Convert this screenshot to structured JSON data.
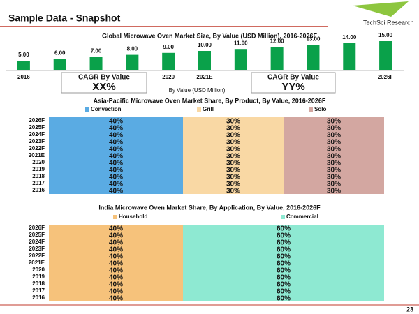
{
  "header": {
    "title": "Sample Data - Snapshot",
    "logo": "TechSci Research"
  },
  "page_number": "23",
  "chart_data": [
    {
      "type": "bar",
      "title": "Global Microwave Oven Market Size, By Value (USD Million), 2016-2026F",
      "categories": [
        "2016",
        null,
        null,
        null,
        "2020",
        "2021E",
        null,
        null,
        null,
        null,
        "2026F"
      ],
      "values": [
        5,
        6,
        7,
        8,
        9,
        10,
        11,
        12,
        13,
        14,
        15
      ],
      "value_labels": [
        "5.00",
        "6.00",
        "7.00",
        "8.00",
        "9.00",
        "10.00",
        "11.00",
        "12.00",
        "13.00",
        "14.00",
        "15.00"
      ],
      "color": "#0aa14a",
      "xlabel": "By Value (USD Million)",
      "annotations": [
        {
          "label": "CAGR By Value",
          "value": "XX%"
        },
        {
          "label": "CAGR By Value",
          "value": "YY%"
        }
      ]
    },
    {
      "type": "stacked_barh",
      "title": "Asia-Pacific Microwave Oven Market Share, By Product, By Value, 2016-2026F",
      "categories": [
        "2026F",
        "2025F",
        "2024F",
        "2023F",
        "2022F",
        "2021E",
        "2020",
        "2019",
        "2018",
        "2017",
        "2016"
      ],
      "series": [
        {
          "name": "Convection",
          "color": "#5aabe3",
          "values": [
            40,
            40,
            40,
            40,
            40,
            40,
            40,
            40,
            40,
            40,
            40
          ],
          "value_labels": [
            "40%",
            "40%",
            "40%",
            "40%",
            "40%",
            "40%",
            "40%",
            "40%",
            "40%",
            "40%",
            "40%"
          ]
        },
        {
          "name": "Grill",
          "color": "#f9d8a4",
          "values": [
            30,
            30,
            30,
            30,
            30,
            30,
            30,
            30,
            30,
            30,
            30
          ],
          "value_labels": [
            "30%",
            "30%",
            "30%",
            "30%",
            "30%",
            "30%",
            "30%",
            "30%",
            "30%",
            "30%",
            "30%"
          ]
        },
        {
          "name": "Solo",
          "color": "#d3a7a1",
          "values": [
            30,
            30,
            30,
            30,
            30,
            30,
            30,
            30,
            30,
            30,
            30
          ],
          "value_labels": [
            "30%",
            "30%",
            "30%",
            "30%",
            "30%",
            "30%",
            "30%",
            "30%",
            "30%",
            "30%",
            "30%"
          ]
        }
      ]
    },
    {
      "type": "stacked_barh",
      "title": "India Microwave Oven Market Share, By Application, By Value, 2016-2026F",
      "categories": [
        "2026F",
        "2025F",
        "2024F",
        "2023F",
        "2022F",
        "2021E",
        "2020",
        "2019",
        "2018",
        "2017",
        "2016"
      ],
      "series": [
        {
          "name": "Household",
          "color": "#f6c27b",
          "values": [
            40,
            40,
            40,
            40,
            40,
            40,
            40,
            40,
            40,
            40,
            40
          ],
          "value_labels": [
            "40%",
            "40%",
            "40%",
            "40%",
            "40%",
            "40%",
            "40%",
            "40%",
            "40%",
            "40%",
            "40%"
          ]
        },
        {
          "name": "Commercial",
          "color": "#8ee9d2",
          "values": [
            60,
            60,
            60,
            60,
            60,
            60,
            60,
            60,
            60,
            60,
            60
          ],
          "value_labels": [
            "60%",
            "60%",
            "60%",
            "60%",
            "60%",
            "60%",
            "60%",
            "60%",
            "60%",
            "60%",
            "60%"
          ]
        }
      ]
    }
  ]
}
